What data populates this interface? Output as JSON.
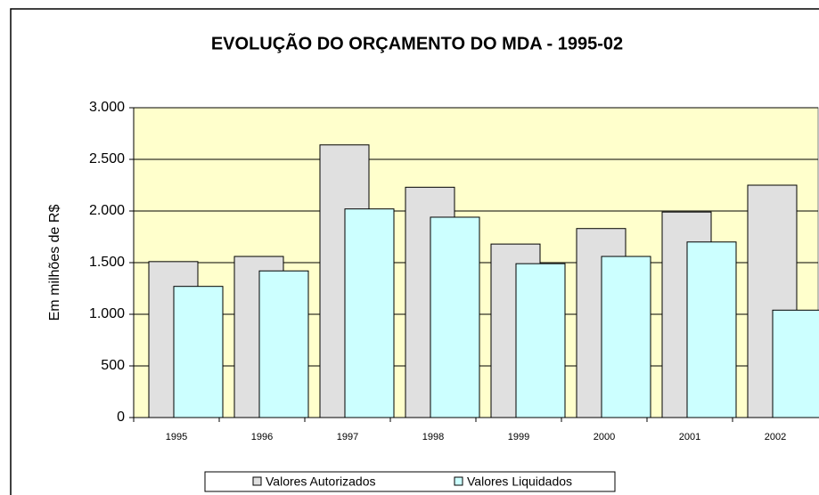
{
  "chart_data": {
    "type": "bar",
    "title": "EVOLUÇÃO DO ORÇAMENTO DO MDA - 1995-02",
    "y_label": "Em milhões de R$",
    "categories": [
      "1995",
      "1996",
      "1997",
      "1998",
      "1999",
      "2000",
      "2001",
      "2002"
    ],
    "series": [
      {
        "name": "Valores Autorizados",
        "color": "#e0e0e0",
        "values": [
          1510,
          1560,
          2640,
          2230,
          1680,
          1830,
          1990,
          2250
        ]
      },
      {
        "name": "Valores Liquidados",
        "color": "#ccffff",
        "values": [
          1270,
          1420,
          2020,
          1940,
          1490,
          1560,
          1700,
          1040
        ]
      }
    ],
    "ylim": [
      0,
      3000
    ],
    "yticks": [
      0,
      500,
      {
        "value": 1000,
        "label": "1.000"
      },
      {
        "value": 1500,
        "label": "1.500"
      },
      {
        "value": 2000,
        "label": "2.000"
      },
      {
        "value": 2500,
        "label": "2.500"
      },
      {
        "value": 3000,
        "label": "3.000"
      }
    ],
    "grid": true,
    "plot_background": "#ffffcc",
    "legend": "bottom"
  }
}
